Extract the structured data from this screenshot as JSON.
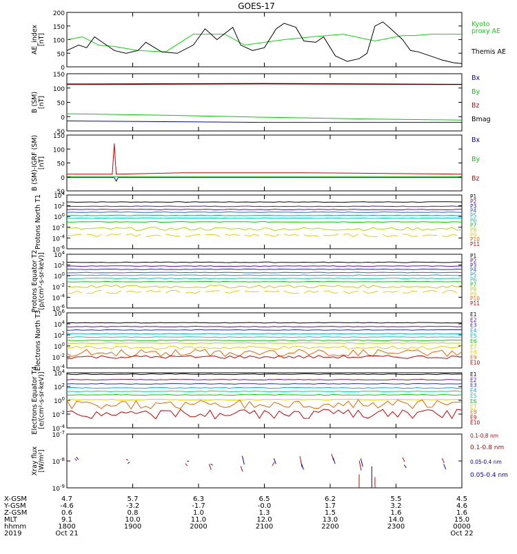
{
  "title": "GOES-17",
  "chart_data": [
    {
      "type": "line",
      "ylabel": "AE_index [nT]",
      "ylim": [
        0,
        200
      ],
      "yticks": [
        "0",
        "50",
        "100",
        "150",
        "200"
      ],
      "series": [
        {
          "name": "Kyoto proxy AE",
          "color": "#00dd00",
          "x": [
            0,
            0.04,
            0.08,
            0.12,
            0.18,
            0.25,
            0.32,
            0.4,
            0.45,
            0.55,
            0.62,
            0.7,
            0.78,
            0.85,
            0.88,
            0.92,
            0.96,
            1.0
          ],
          "values": [
            100,
            110,
            80,
            75,
            60,
            55,
            120,
            120,
            80,
            100,
            110,
            120,
            95,
            115,
            115,
            120,
            120,
            120
          ]
        },
        {
          "name": "Themis AE",
          "color": "#000000",
          "x": [
            0,
            0.03,
            0.05,
            0.07,
            0.09,
            0.12,
            0.15,
            0.18,
            0.2,
            0.24,
            0.28,
            0.32,
            0.35,
            0.38,
            0.42,
            0.44,
            0.47,
            0.5,
            0.53,
            0.55,
            0.58,
            0.6,
            0.63,
            0.65,
            0.68,
            0.71,
            0.74,
            0.76,
            0.78,
            0.8,
            0.82,
            0.85,
            0.87,
            0.89,
            0.92,
            0.95,
            0.98,
            1.0
          ],
          "values": [
            60,
            80,
            70,
            110,
            90,
            60,
            50,
            60,
            90,
            55,
            50,
            80,
            140,
            100,
            145,
            80,
            60,
            70,
            140,
            160,
            145,
            95,
            90,
            110,
            40,
            20,
            30,
            50,
            150,
            165,
            140,
            100,
            60,
            55,
            40,
            25,
            15,
            12
          ]
        }
      ]
    },
    {
      "type": "line",
      "ylabel": "B (SM) [nT]",
      "ylim": [
        -50,
        150
      ],
      "yticks": [
        "-50",
        "0",
        "50",
        "100",
        "150"
      ],
      "series": [
        {
          "name": "Bx",
          "color": "#0000cc",
          "x": [
            0,
            0.5,
            1.0
          ],
          "values": [
            -15,
            -20,
            -20
          ]
        },
        {
          "name": "By",
          "color": "#00cc00",
          "x": [
            0,
            0.25,
            0.5,
            0.75,
            1.0
          ],
          "values": [
            10,
            5,
            -2,
            -8,
            -12
          ]
        },
        {
          "name": "Bz",
          "color": "#cc0000",
          "x": [
            0,
            0.5,
            1.0
          ],
          "values": [
            112,
            114,
            112
          ]
        },
        {
          "name": "Bmag",
          "color": "#000000",
          "x": [
            0,
            0.5,
            1.0
          ],
          "values": [
            114,
            116,
            113
          ]
        }
      ]
    },
    {
      "type": "line",
      "ylabel": "B (SM)-IGRF (SM) [nT]",
      "ylim": [
        -50,
        150
      ],
      "yticks": [
        "-50",
        "0",
        "50",
        "100",
        "150"
      ],
      "series": [
        {
          "name": "Bx",
          "color": "#0000cc",
          "x": [
            0,
            0.12,
            0.125,
            0.13,
            1.0
          ],
          "values": [
            -2,
            -2,
            -15,
            -2,
            -2
          ]
        },
        {
          "name": "By",
          "color": "#00cc00",
          "x": [
            0,
            0.5,
            1.0
          ],
          "values": [
            1,
            1,
            1
          ]
        },
        {
          "name": "Bz",
          "color": "#cc0000",
          "x": [
            0,
            0.115,
            0.12,
            0.125,
            0.3,
            0.6,
            1.0
          ],
          "values": [
            10,
            10,
            120,
            10,
            15,
            15,
            10
          ]
        }
      ]
    },
    {
      "type": "line",
      "ylabel": "Protons North T1",
      "ylim": [
        -6,
        4
      ],
      "log": true,
      "yticks": [
        "10^-6",
        "10^-4",
        "10^-2",
        "10^0",
        "10^2",
        "10^4"
      ],
      "series": [
        {
          "name": "P1",
          "color": "#000000",
          "level": 2.7
        },
        {
          "name": "P2",
          "color": "#6a0dad",
          "level": 1.9
        },
        {
          "name": "P3",
          "color": "#2222cc",
          "level": 1.3
        },
        {
          "name": "P4",
          "color": "#3355ff",
          "level": 0.8
        },
        {
          "name": "P5",
          "color": "#00aadd",
          "level": 0.2
        },
        {
          "name": "P6",
          "color": "#00ccaa",
          "level": -0.3
        },
        {
          "name": "P7",
          "color": "#00cc00",
          "level": -1.0
        },
        {
          "name": "P8",
          "color": "#aadd00",
          "level": -2.3
        },
        {
          "name": "P9",
          "color": "#eecc00",
          "level": -3.5
        },
        {
          "name": "P10",
          "color": "#ee6600",
          "level": null
        },
        {
          "name": "P11",
          "color": "#cc0000",
          "level": null
        }
      ]
    },
    {
      "type": "line",
      "ylabel": "Protons Equator T2 [p/(cm²-s-sr-keV)]",
      "ylim": [
        -6,
        4
      ],
      "log": true,
      "yticks": [
        "10^-6",
        "10^-4",
        "10^-2",
        "10^0",
        "10^2",
        "10^4"
      ],
      "series": [
        {
          "name": "P1",
          "color": "#000000",
          "level": 2.5
        },
        {
          "name": "P2",
          "color": "#6a0dad",
          "level": 1.8
        },
        {
          "name": "P3",
          "color": "#2222cc",
          "level": 1.2
        },
        {
          "name": "P4",
          "color": "#3355ff",
          "level": 0.6
        },
        {
          "name": "P5",
          "color": "#00aadd",
          "level": 0.1
        },
        {
          "name": "P6",
          "color": "#00ccaa",
          "level": -0.5
        },
        {
          "name": "P7",
          "color": "#00cc00",
          "level": -1.1
        },
        {
          "name": "P8",
          "color": "#aadd00",
          "level": -2.0
        },
        {
          "name": "P9",
          "color": "#eecc00",
          "level": -3.0
        },
        {
          "name": "P10",
          "color": "#ee6600",
          "level": null
        },
        {
          "name": "P11",
          "color": "#cc0000",
          "level": null
        }
      ]
    },
    {
      "type": "line",
      "ylabel": "Electrons North T3",
      "ylim": [
        -4,
        6
      ],
      "log": true,
      "yticks": [
        "10^-4",
        "10^-2",
        "10^0",
        "10^2",
        "10^4",
        "10^6"
      ],
      "series": [
        {
          "name": "E1",
          "color": "#000000",
          "level": 4.2
        },
        {
          "name": "E2",
          "color": "#6a0dad",
          "level": 3.5
        },
        {
          "name": "E3",
          "color": "#2222cc",
          "level": 2.9
        },
        {
          "name": "E4",
          "color": "#00aadd",
          "level": 2.2
        },
        {
          "name": "E5",
          "color": "#00ccaa",
          "level": 1.6
        },
        {
          "name": "E6",
          "color": "#00cc00",
          "level": 1.0
        },
        {
          "name": "E7",
          "color": "#aadd00",
          "level": 0.5
        },
        {
          "name": "E8",
          "color": "#eecc00",
          "level": -0.3
        },
        {
          "name": "E9",
          "color": "#ee6600",
          "level": -1.3
        },
        {
          "name": "E10",
          "color": "#cc0000",
          "level": -2.0
        }
      ]
    },
    {
      "type": "line",
      "ylabel": "Electrons Equator T4 [e/(cm²-s-sr-keV)]",
      "ylim": [
        -4,
        4
      ],
      "log": true,
      "yticks": [
        "10^-4",
        "10^-2",
        "10^0",
        "10^2",
        "10^4"
      ],
      "series": [
        {
          "name": "E1",
          "color": "#000000",
          "level": 3.8
        },
        {
          "name": "E2",
          "color": "#6a0dad",
          "level": 3.0
        },
        {
          "name": "E3",
          "color": "#2222cc",
          "level": 2.4
        },
        {
          "name": "E4",
          "color": "#00aadd",
          "level": 1.8
        },
        {
          "name": "E5",
          "color": "#00ccaa",
          "level": 1.3
        },
        {
          "name": "E6",
          "color": "#00cc00",
          "level": 0.8
        },
        {
          "name": "E7",
          "color": "#eecc00",
          "level": 0.1
        },
        {
          "name": "E8",
          "color": "#ee6600",
          "level": -0.6
        },
        {
          "name": "E9",
          "color": "#cc0000",
          "level": -2.0
        },
        {
          "name": "E10",
          "color": "#cc0000",
          "level": null
        }
      ]
    },
    {
      "type": "line",
      "ylabel": "Xray flux [W/m²]",
      "ylim": [
        -9,
        -7
      ],
      "log": true,
      "yticks": [
        "10^-9",
        "10^-8",
        "10^-7"
      ],
      "series": [
        {
          "name": "0.1-0.8 nm",
          "color": "#cc0000"
        },
        {
          "name": "0.05-0.4 nm",
          "color": "#0000cc"
        }
      ]
    }
  ],
  "xaxis": {
    "rows": [
      {
        "label": "X-GSM",
        "values": [
          "4.7",
          "5.7",
          "6.3",
          "6.5",
          "6.2",
          "5.5",
          "4.5"
        ]
      },
      {
        "label": "Y-GSM",
        "values": [
          "-4.6",
          "-3.2",
          "-1.7",
          "-0.0",
          "1.7",
          "3.2",
          "4.6"
        ]
      },
      {
        "label": "Z-GSM",
        "values": [
          "0.6",
          "0.8",
          "1.0",
          "1.3",
          "1.5",
          "1.6",
          "1.6"
        ]
      },
      {
        "label": "MLT",
        "values": [
          "9.1",
          "10.0",
          "11.0",
          "12.0",
          "13.0",
          "14.0",
          "15.0"
        ]
      },
      {
        "label": "hhmm",
        "values": [
          "1800",
          "1900",
          "2000",
          "2100",
          "2200",
          "2300",
          "0000"
        ]
      },
      {
        "label": "2019",
        "values": [
          "Oct 21",
          "",
          "",
          "",
          "",
          "",
          "Oct 22"
        ]
      }
    ]
  }
}
